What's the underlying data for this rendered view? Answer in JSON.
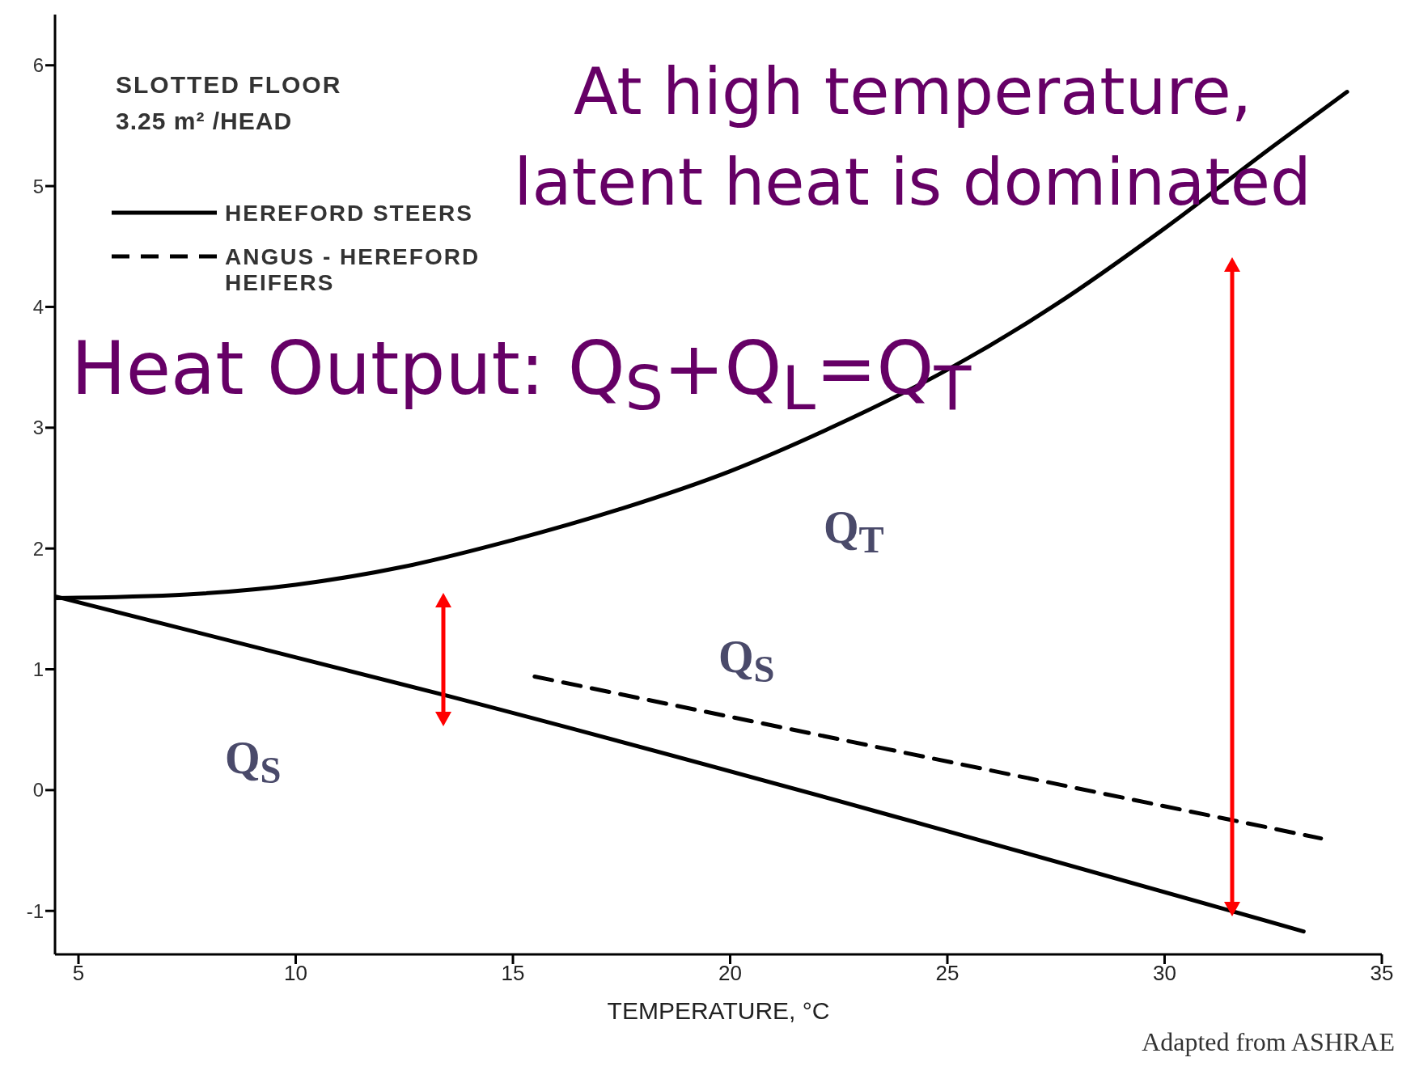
{
  "chart_data": {
    "type": "line",
    "xlabel": "TEMPERATURE, °C",
    "xlim": [
      4.46,
      35
    ],
    "xticks": [
      5,
      10,
      15,
      20,
      25,
      30,
      35
    ],
    "ylim": [
      -1.36,
      6.42
    ],
    "yticks": [
      -1,
      0,
      1,
      2,
      3,
      4,
      5,
      6
    ],
    "grid": false,
    "legend": "top left",
    "marker": "none",
    "series": [
      {
        "color": "#000000",
        "line_style": "solid",
        "x": [
          4.5,
          7.5,
          10,
          12.5,
          15,
          17.5,
          20,
          22.5,
          25,
          27.5,
          30,
          32.5,
          34.2
        ],
        "values": [
          1.59,
          1.62,
          1.7,
          1.85,
          2.07,
          2.33,
          2.64,
          3.03,
          3.48,
          4.02,
          4.65,
          5.33,
          5.78
        ]
      },
      {
        "name": "HEREFORD STEERS",
        "color": "#000000",
        "line_style": "solid",
        "x": [
          4.5,
          13.5,
          33.2
        ],
        "values": [
          1.6,
          0.78,
          -1.17
        ]
      },
      {
        "name": "ANGUS - HEREFORD HEIFERS",
        "color": "#000000",
        "line_style": "dashed",
        "x": [
          15.5,
          33.6
        ],
        "values": [
          0.94,
          -0.4
        ]
      }
    ],
    "annotations": [
      "SLOTTED FLOOR",
      "3.25 m² /HEAD",
      "At high temperature, latent heat is dominated",
      "Heat Output: Q$_{S}$+Q$_{L}$=Q$_{T}$",
      "Q$_{T}$",
      "Q$_{S}$",
      "Q$_{S}$",
      "Adapted from ASHRAE"
    ]
  }
}
